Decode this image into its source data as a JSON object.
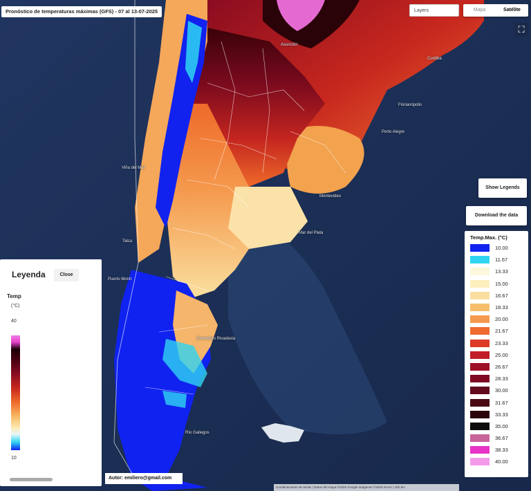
{
  "title": "Pronóstico de temperaturas máximas (GFS) - 07 al 13-07-2025",
  "controls": {
    "layers_placeholder": "Layers",
    "map_option": "Mapa",
    "satellite_option": "Satélite",
    "show_legend": "Show Legends",
    "download": "Download the data"
  },
  "legend_right": {
    "title": "Temp.Max. (°C)",
    "items": [
      {
        "label": "10.00",
        "color": "#1022f0"
      },
      {
        "label": "11.67",
        "color": "#2fd5f2"
      },
      {
        "label": "13.33",
        "color": "#fdf8dc"
      },
      {
        "label": "15.00",
        "color": "#fdeebd"
      },
      {
        "label": "16.67",
        "color": "#fbdf9f"
      },
      {
        "label": "18.33",
        "color": "#f6be6c"
      },
      {
        "label": "20.00",
        "color": "#f49a4e"
      },
      {
        "label": "21.67",
        "color": "#ee6a30"
      },
      {
        "label": "23.33",
        "color": "#dd3b25"
      },
      {
        "label": "25.00",
        "color": "#c01f27"
      },
      {
        "label": "26.67",
        "color": "#9e0f28"
      },
      {
        "label": "28.33",
        "color": "#7f0923"
      },
      {
        "label": "30.00",
        "color": "#630a1c"
      },
      {
        "label": "31.67",
        "color": "#4a0a14"
      },
      {
        "label": "33.33",
        "color": "#2b050b"
      },
      {
        "label": "35.00",
        "color": "#0d0d0d"
      },
      {
        "label": "36.67",
        "color": "#c8649b"
      },
      {
        "label": "38.33",
        "color": "#e833c6"
      },
      {
        "label": "40.00",
        "color": "#f59ae8"
      }
    ]
  },
  "legend_left": {
    "header": "Leyenda",
    "close": "Close",
    "var_label": "Temp",
    "unit": "(°C)",
    "max": "40",
    "min": "10"
  },
  "author": "Autor: emiliero@gmail.com",
  "attribution": "Combinaciones de teclas | Datos del mapa ©2025 Google Imágenes ©2025 NASA | 200 km",
  "places": {
    "asuncion": "Asunción",
    "porto_alegre": "Porto Alegre",
    "florianopolis": "Florianópolis",
    "curitiba": "Curitiba",
    "montevideo": "Montevideo",
    "mar_del_plata": "Mar del Plata",
    "comodoro": "Comodoro Rivadavia",
    "villa_del_mar": "Viña del Mar",
    "puerto_montt": "Puerto Montt",
    "talca": "Talca",
    "rio_gallegos": "Río Gallegos"
  }
}
